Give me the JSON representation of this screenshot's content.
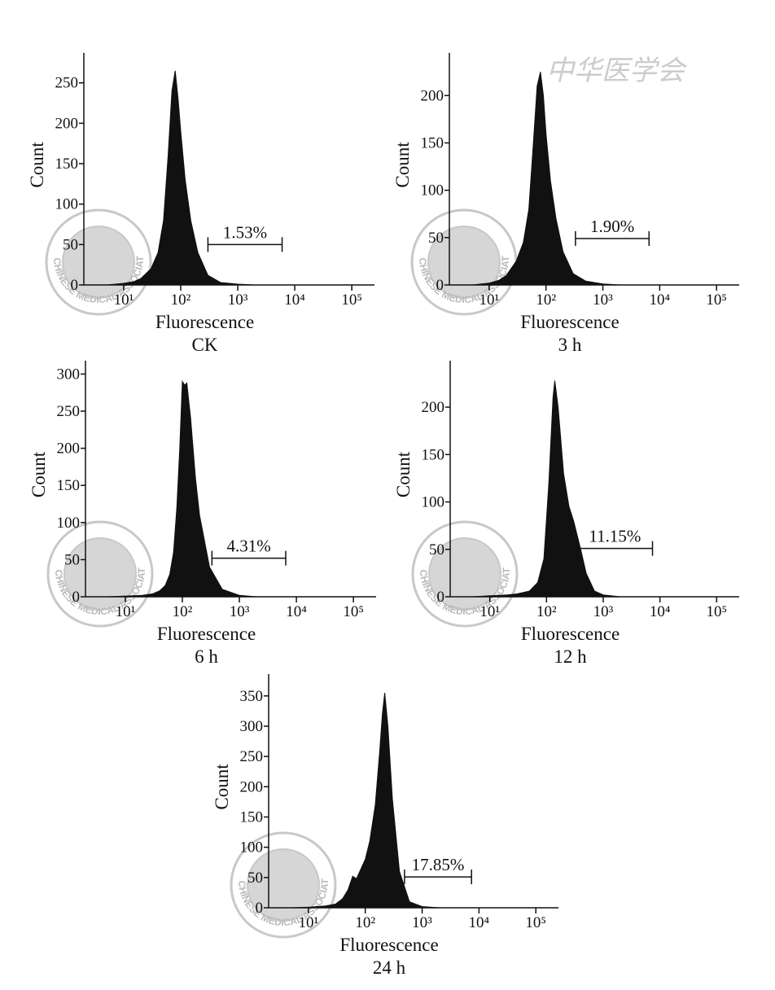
{
  "watermark": "CHINESE MEDICAL ASSOCIATION",
  "publisher_mark": "中华医学会",
  "chart_data": [
    {
      "type": "area",
      "title": "CK",
      "xlabel": "Fluorescence",
      "ylabel": "Count",
      "xscale": "log",
      "color": "#111111",
      "x": [
        5,
        10,
        15,
        20,
        30,
        40,
        50,
        60,
        70,
        80,
        90,
        100,
        120,
        150,
        200,
        300,
        500,
        1000,
        2000
      ],
      "values": [
        0,
        2,
        4,
        8,
        20,
        40,
        80,
        160,
        240,
        265,
        230,
        190,
        130,
        80,
        40,
        12,
        3,
        1,
        0
      ],
      "xlim": [
        2,
        250000
      ],
      "ylim": [
        0,
        287
      ],
      "xticks": [
        {
          "value": 10,
          "label": "10¹"
        },
        {
          "value": 100,
          "label": "10²"
        },
        {
          "value": 1000,
          "label": "10³"
        },
        {
          "value": 10000,
          "label": "10⁴"
        },
        {
          "value": 100000,
          "label": "10⁵"
        }
      ],
      "yticks": [
        0,
        50,
        100,
        150,
        200,
        250
      ],
      "gate": {
        "label": "1.53%",
        "x": [
          300,
          6000
        ],
        "y": 50
      }
    },
    {
      "type": "area",
      "title": "3 h",
      "xlabel": "Fluorescence",
      "ylabel": "Count",
      "xscale": "log",
      "color": "#111111",
      "x": [
        5,
        10,
        15,
        20,
        30,
        40,
        50,
        60,
        70,
        80,
        90,
        100,
        120,
        150,
        200,
        300,
        500,
        1000,
        2000
      ],
      "values": [
        0,
        2,
        5,
        10,
        25,
        45,
        80,
        150,
        210,
        225,
        200,
        160,
        110,
        70,
        35,
        12,
        4,
        1,
        0
      ],
      "xlim": [
        2,
        250000
      ],
      "ylim": [
        0,
        245
      ],
      "xticks": [
        {
          "value": 10,
          "label": "10¹"
        },
        {
          "value": 100,
          "label": "10²"
        },
        {
          "value": 1000,
          "label": "10³"
        },
        {
          "value": 10000,
          "label": "10⁴"
        },
        {
          "value": 100000,
          "label": "10⁵"
        }
      ],
      "yticks": [
        0,
        50,
        100,
        150,
        200
      ],
      "gate": {
        "label": "1.90%",
        "x": [
          330,
          6500
        ],
        "y": 49
      }
    },
    {
      "type": "area",
      "title": "6 h",
      "xlabel": "Fluorescence",
      "ylabel": "Count",
      "xscale": "log",
      "color": "#111111",
      "x": [
        5,
        10,
        20,
        30,
        40,
        50,
        60,
        70,
        80,
        90,
        100,
        110,
        120,
        140,
        170,
        200,
        300,
        500,
        1000,
        2000
      ],
      "values": [
        0,
        1,
        2,
        4,
        8,
        15,
        30,
        60,
        120,
        200,
        290,
        285,
        288,
        240,
        160,
        110,
        40,
        10,
        2,
        0
      ],
      "xlim": [
        2,
        250000
      ],
      "ylim": [
        0,
        318
      ],
      "xticks": [
        {
          "value": 10,
          "label": "10¹"
        },
        {
          "value": 100,
          "label": "10²"
        },
        {
          "value": 1000,
          "label": "10³"
        },
        {
          "value": 10000,
          "label": "10⁴"
        },
        {
          "value": 100000,
          "label": "10⁵"
        }
      ],
      "yticks": [
        0,
        50,
        100,
        150,
        200,
        250,
        300
      ],
      "gate": {
        "label": "4.31%",
        "x": [
          330,
          6500
        ],
        "y": 52
      }
    },
    {
      "type": "area",
      "title": "12 h",
      "xlabel": "Fluorescence",
      "ylabel": "Count",
      "xscale": "log",
      "color": "#111111",
      "x": [
        5,
        10,
        20,
        30,
        50,
        70,
        90,
        110,
        130,
        140,
        160,
        200,
        250,
        300,
        400,
        500,
        700,
        1000,
        2000
      ],
      "values": [
        0,
        1,
        2,
        3,
        6,
        15,
        40,
        120,
        210,
        228,
        200,
        130,
        95,
        80,
        50,
        25,
        6,
        2,
        0
      ],
      "xlim": [
        2,
        250000
      ],
      "ylim": [
        0,
        249
      ],
      "xticks": [
        {
          "value": 10,
          "label": "10¹"
        },
        {
          "value": 100,
          "label": "10²"
        },
        {
          "value": 1000,
          "label": "10³"
        },
        {
          "value": 10000,
          "label": "10⁴"
        },
        {
          "value": 100000,
          "label": "10⁵"
        }
      ],
      "yticks": [
        0,
        50,
        100,
        150,
        200
      ],
      "gate": {
        "label": "11.15%",
        "x": [
          350,
          7400
        ],
        "y": 51
      }
    },
    {
      "type": "area",
      "title": "24 h",
      "xlabel": "Fluorescence",
      "ylabel": "Count",
      "xscale": "log",
      "color": "#111111",
      "x": [
        5,
        10,
        20,
        30,
        40,
        50,
        60,
        70,
        80,
        100,
        120,
        150,
        180,
        200,
        220,
        250,
        300,
        400,
        600,
        1000,
        2000
      ],
      "values": [
        0,
        1,
        3,
        6,
        15,
        30,
        52,
        48,
        60,
        80,
        110,
        170,
        260,
        320,
        355,
        300,
        180,
        60,
        10,
        2,
        0
      ],
      "xlim": [
        2,
        250000
      ],
      "ylim": [
        0,
        386
      ],
      "xticks": [
        {
          "value": 10,
          "label": "10¹"
        },
        {
          "value": 100,
          "label": "10²"
        },
        {
          "value": 1000,
          "label": "10³"
        },
        {
          "value": 10000,
          "label": "10⁴"
        },
        {
          "value": 100000,
          "label": "10⁵"
        }
      ],
      "yticks": [
        0,
        50,
        100,
        150,
        200,
        250,
        300,
        350
      ],
      "gate": {
        "label": "17.85%",
        "x": [
          490,
          7400
        ],
        "y": 51
      }
    }
  ]
}
